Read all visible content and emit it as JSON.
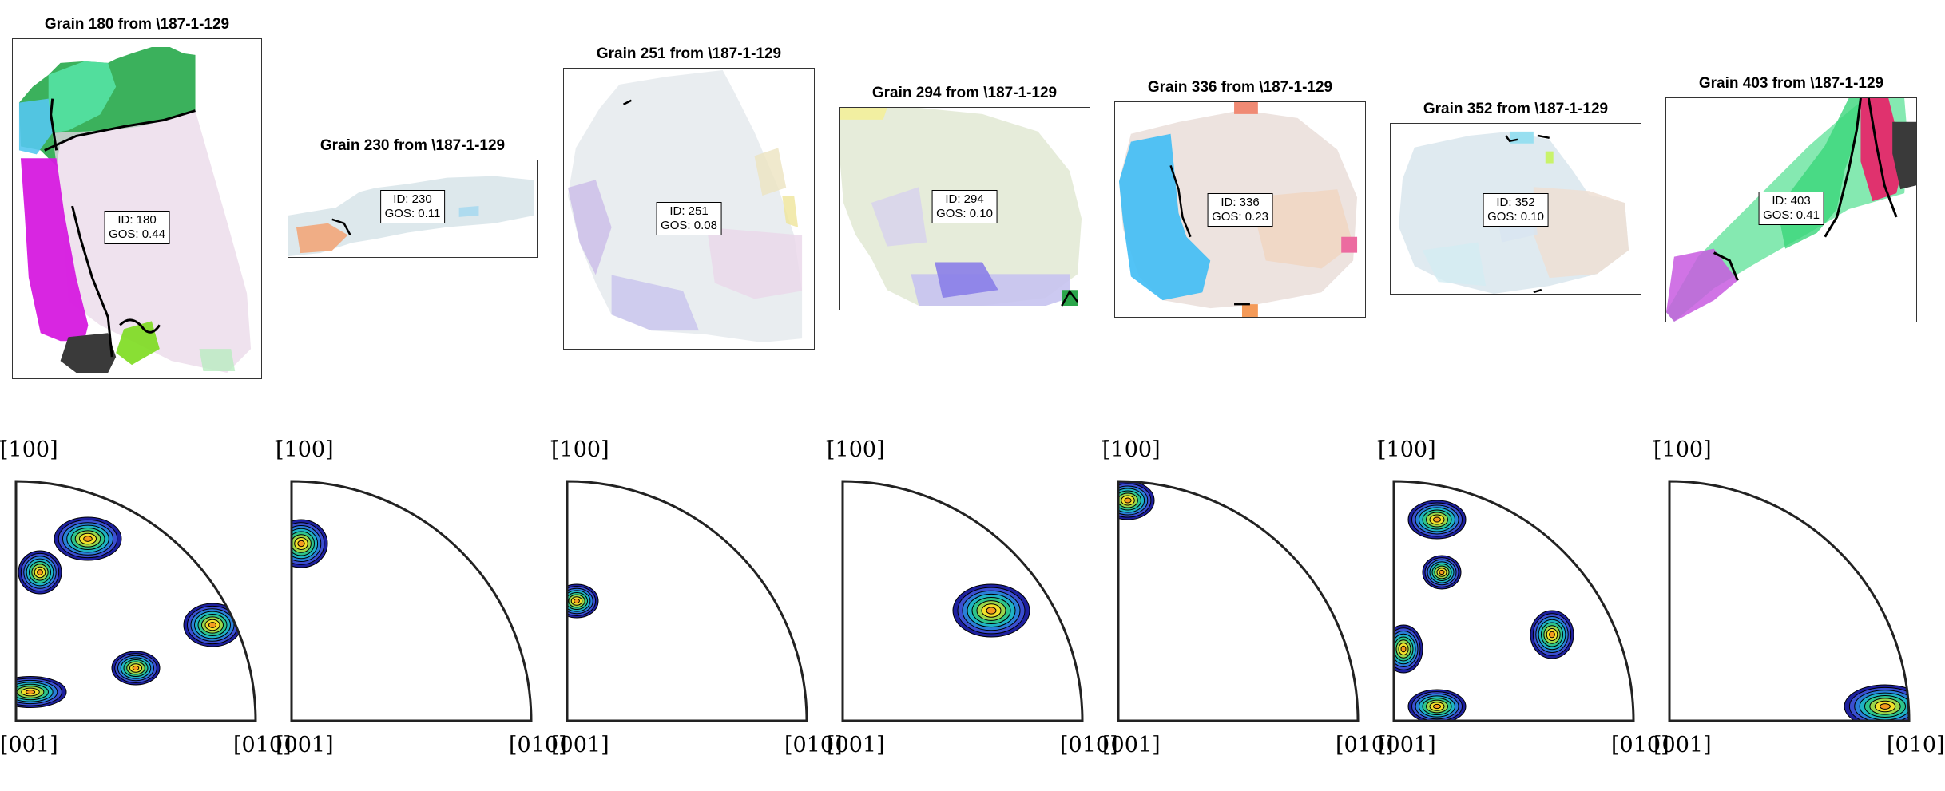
{
  "grains": [
    {
      "title": "Grain 180 from \\187-1-129",
      "id_line": "ID: 180",
      "gos_line": "GOS: 0.44"
    },
    {
      "title": "Grain 230 from \\187-1-129",
      "id_line": "ID: 230",
      "gos_line": "GOS: 0.11"
    },
    {
      "title": "Grain 251 from \\187-1-129",
      "id_line": "ID: 251",
      "gos_line": "GOS: 0.08"
    },
    {
      "title": "Grain 294 from \\187-1-129",
      "id_line": "ID: 294",
      "gos_line": "GOS: 0.10"
    },
    {
      "title": "Grain 336 from \\187-1-129",
      "id_line": "ID: 336",
      "gos_line": "GOS: 0.23"
    },
    {
      "title": "Grain 352 from \\187-1-129",
      "id_line": "ID: 352",
      "gos_line": "GOS: 0.10"
    },
    {
      "title": "Grain 403 from \\187-1-129",
      "id_line": "ID: 403",
      "gos_line": "GOS: 0.41"
    }
  ],
  "pole_figures": [
    {
      "top_label": "[̄100]",
      "origin_label": "[001]",
      "right_label": "[010]"
    },
    {
      "top_label": "[̄100]",
      "origin_label": "[001]",
      "right_label": "[010]"
    },
    {
      "top_label": "[̄100]",
      "origin_label": "[001]",
      "right_label": "[010]"
    },
    {
      "top_label": "[̄100]",
      "origin_label": "[001]",
      "right_label": "[010]"
    },
    {
      "top_label": "[̄100]",
      "origin_label": "[001]",
      "right_label": "[010]"
    },
    {
      "top_label": "[̄100]",
      "origin_label": "[001]",
      "right_label": "[010]"
    },
    {
      "top_label": "[̄100]",
      "origin_label": "[001]",
      "right_label": "[010]"
    }
  ],
  "colors": {
    "contour_scale": [
      "#1d1f9e",
      "#3b4fd1",
      "#2a7fd8",
      "#1fb3c4",
      "#2ec48a",
      "#9bd64a",
      "#f2e02a",
      "#f59a1f",
      "#e0341a"
    ],
    "boundary": "#000000",
    "frame": "#333333"
  }
}
